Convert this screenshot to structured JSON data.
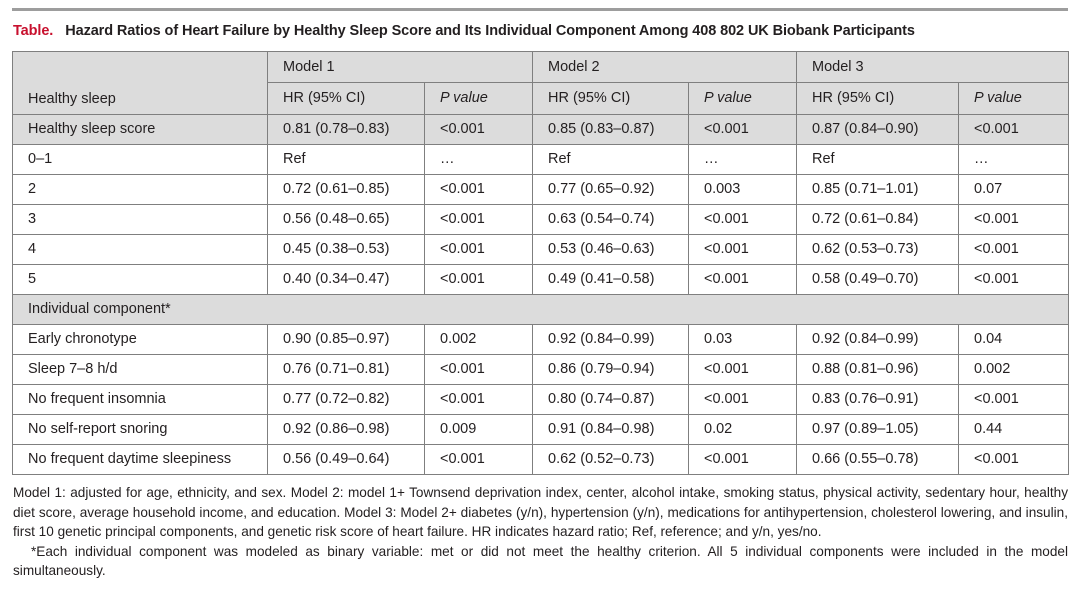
{
  "caption": {
    "label": "Table.",
    "title": "Hazard Ratios of Heart Failure by Healthy Sleep Score and Its Individual Component Among 408 802 UK Biobank Participants"
  },
  "header": {
    "row_label": "Healthy sleep",
    "models": [
      "Model 1",
      "Model 2",
      "Model 3"
    ],
    "hr_label": "HR (95% CI)",
    "p_label": "P value"
  },
  "rows": [
    {
      "label": "Healthy sleep score",
      "cells": [
        "0.81 (0.78–0.83)",
        "<0.001",
        "0.85 (0.83–0.87)",
        "<0.001",
        "0.87 (0.84–0.90)",
        "<0.001"
      ]
    },
    {
      "label": "0–1",
      "cells": [
        "Ref",
        "…",
        "Ref",
        "…",
        "Ref",
        "…"
      ]
    },
    {
      "label": "2",
      "cells": [
        "0.72 (0.61–0.85)",
        "<0.001",
        "0.77 (0.65–0.92)",
        "0.003",
        "0.85 (0.71–1.01)",
        "0.07"
      ]
    },
    {
      "label": "3",
      "cells": [
        "0.56 (0.48–0.65)",
        "<0.001",
        "0.63 (0.54–0.74)",
        "<0.001",
        "0.72 (0.61–0.84)",
        "<0.001"
      ]
    },
    {
      "label": "4",
      "cells": [
        "0.45 (0.38–0.53)",
        "<0.001",
        "0.53 (0.46–0.63)",
        "<0.001",
        "0.62 (0.53–0.73)",
        "<0.001"
      ]
    },
    {
      "label": "5",
      "cells": [
        "0.40 (0.34–0.47)",
        "<0.001",
        "0.49 (0.41–0.58)",
        "<0.001",
        "0.58 (0.49–0.70)",
        "<0.001"
      ]
    },
    {
      "label": "Individual component*"
    },
    {
      "label": "Early chronotype",
      "cells": [
        "0.90 (0.85–0.97)",
        "0.002",
        "0.92 (0.84–0.99)",
        "0.03",
        "0.92 (0.84–0.99)",
        "0.04"
      ]
    },
    {
      "label": "Sleep 7–8 h/d",
      "cells": [
        "0.76 (0.71–0.81)",
        "<0.001",
        "0.86 (0.79–0.94)",
        "<0.001",
        "0.88 (0.81–0.96)",
        "0.002"
      ]
    },
    {
      "label": "No frequent insomnia",
      "cells": [
        "0.77 (0.72–0.82)",
        "<0.001",
        "0.80 (0.74–0.87)",
        "<0.001",
        "0.83 (0.76–0.91)",
        "<0.001"
      ]
    },
    {
      "label": "No self-report snoring",
      "cells": [
        "0.92 (0.86–0.98)",
        "0.009",
        "0.91 (0.84–0.98)",
        "0.02",
        "0.97 (0.89–1.05)",
        "0.44"
      ]
    },
    {
      "label": "No frequent daytime sleepiness",
      "cells": [
        "0.56 (0.49–0.64)",
        "<0.001",
        "0.62 (0.52–0.73)",
        "<0.001",
        "0.66 (0.55–0.78)",
        "<0.001"
      ]
    }
  ],
  "footnotes": [
    "Model 1: adjusted for age, ethnicity, and sex. Model 2: model 1+ Townsend deprivation index, center, alcohol intake, smoking status, physical activity, sedentary hour, healthy diet score, average household income, and education. Model 3: Model 2+ diabetes (y/n), hypertension (y/n), medications for antihypertension, cholesterol lowering, and insulin, first 10 genetic principal components, and genetic risk score of heart failure. HR indicates hazard ratio; Ref, reference; and y/n, yes/no.",
    "*Each individual component was modeled as binary variable: met or did not meet the healthy criterion. All 5 individual components were included in the model simultaneously."
  ],
  "colors": {
    "title_label": "#c8102e",
    "header_fill": "#dcdcdc",
    "border": "#7f7f7f",
    "top_rule": "#9d9d9d"
  }
}
